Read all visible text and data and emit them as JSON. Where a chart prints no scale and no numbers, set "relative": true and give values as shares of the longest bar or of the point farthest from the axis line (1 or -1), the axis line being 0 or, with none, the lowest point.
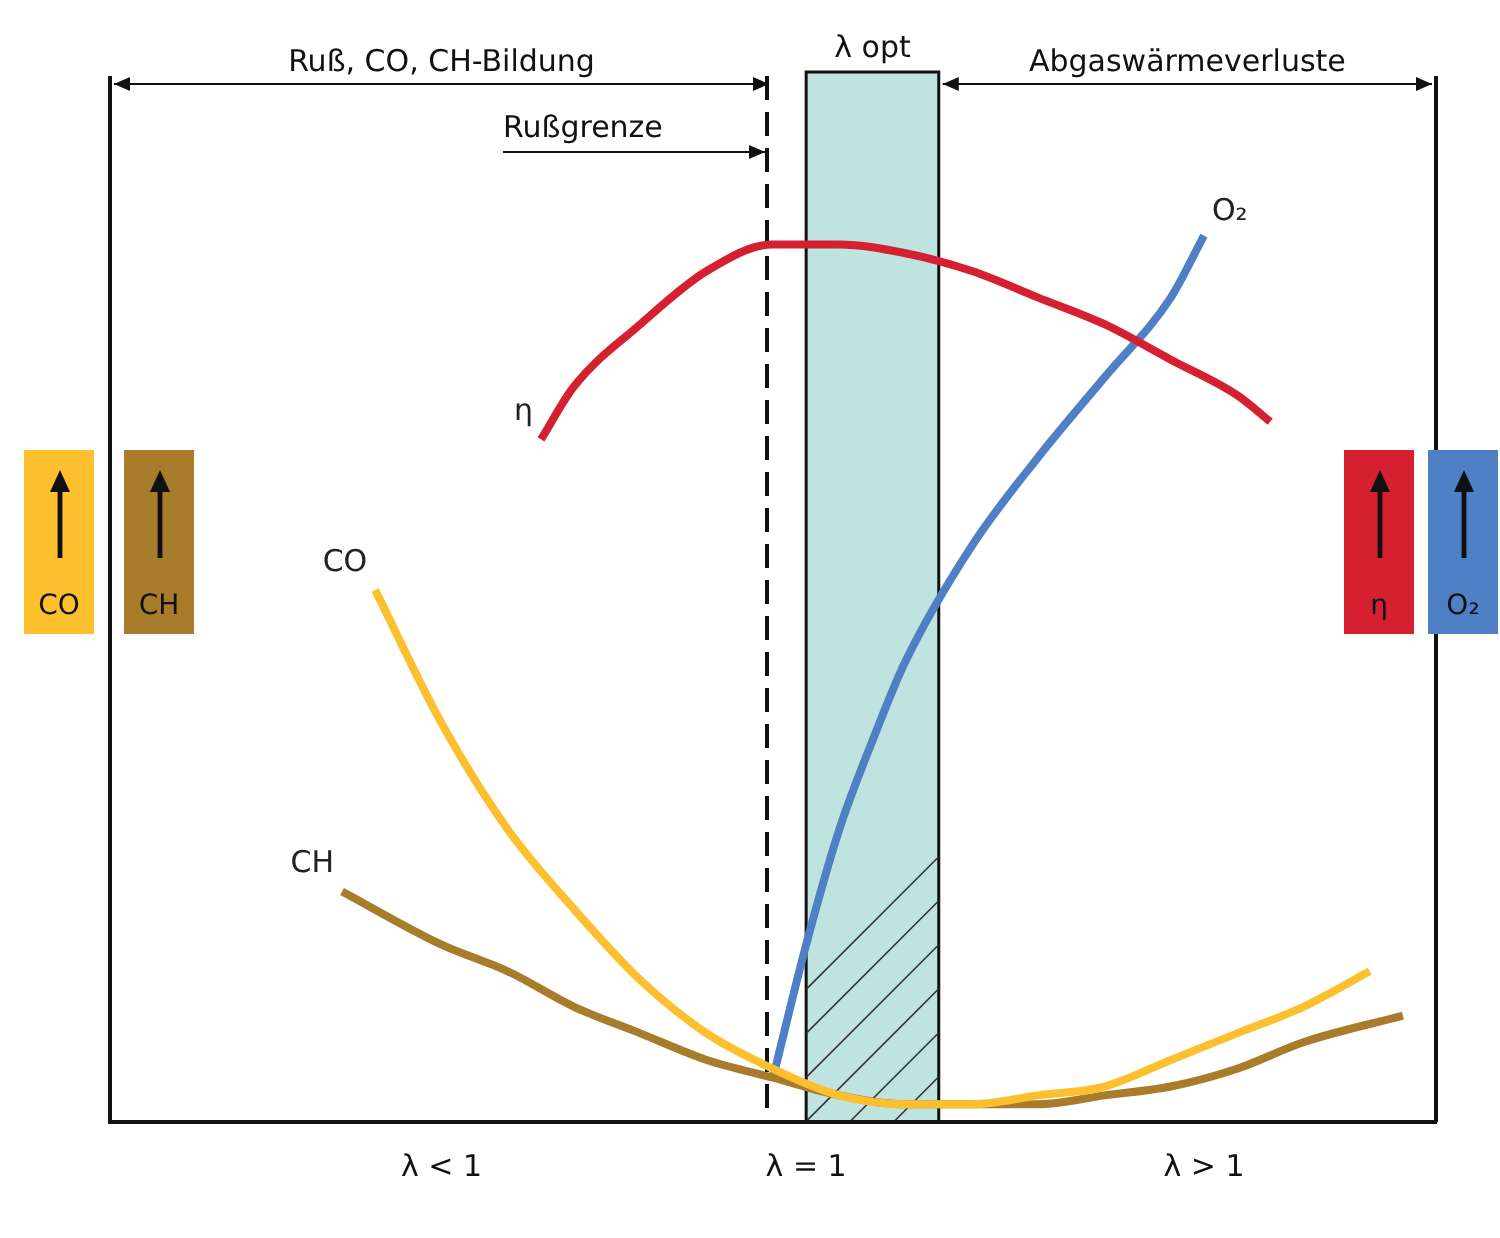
{
  "chart_data": {
    "type": "line",
    "relative": true,
    "marker": "none",
    "grid": false,
    "legend": false,
    "categories": [
      null,
      null,
      null,
      null,
      null,
      null,
      null,
      null,
      null,
      null,
      "λ < 1",
      null,
      null,
      null,
      null,
      null,
      null,
      null,
      null,
      null,
      null,
      "λ = 1",
      null,
      null,
      null,
      null,
      null,
      null,
      null,
      null,
      null,
      null,
      null,
      "λ > 1",
      null,
      null,
      null,
      null,
      null,
      null,
      null
    ],
    "series": [
      {
        "name": "η",
        "color": "#d42030",
        "values": [
          null,
          null,
          null,
          null,
          null,
          null,
          null,
          null,
          null,
          null,
          null,
          null,
          null,
          0.77,
          0.83,
          null,
          0.9,
          null,
          0.96,
          null,
          0.99,
          null,
          0.99,
          null,
          0.98,
          null,
          0.96,
          null,
          0.93,
          null,
          0.9,
          null,
          0.86,
          null,
          0.82,
          0.79,
          null,
          null,
          null,
          null,
          null
        ]
      },
      {
        "name": "CO",
        "color": "#fcc02e",
        "values": [
          null,
          null,
          null,
          null,
          null,
          null,
          null,
          null,
          0.6,
          null,
          0.45,
          null,
          0.33,
          null,
          0.24,
          null,
          0.16,
          null,
          0.1,
          null,
          0.06,
          null,
          0.03,
          null,
          0.02,
          null,
          0.02,
          null,
          0.03,
          null,
          0.04,
          null,
          0.07,
          null,
          0.1,
          null,
          0.13,
          null,
          0.17,
          null,
          null
        ]
      },
      {
        "name": "CH",
        "color": "#a87c2a",
        "values": [
          null,
          null,
          null,
          null,
          null,
          null,
          null,
          0.26,
          null,
          null,
          0.2,
          null,
          0.17,
          null,
          0.13,
          null,
          0.1,
          null,
          0.07,
          null,
          0.05,
          null,
          0.03,
          null,
          0.02,
          null,
          0.02,
          null,
          0.02,
          null,
          0.03,
          null,
          0.04,
          null,
          0.06,
          null,
          0.09,
          null,
          null,
          0.12,
          null
        ]
      },
      {
        "name": "O₂",
        "color": "#4f7fc4",
        "values": [
          null,
          null,
          null,
          null,
          null,
          null,
          null,
          null,
          null,
          null,
          null,
          null,
          null,
          null,
          null,
          null,
          null,
          null,
          null,
          null,
          0.05,
          0.2,
          0.33,
          0.43,
          0.52,
          null,
          0.65,
          null,
          0.75,
          null,
          0.84,
          null,
          0.93,
          1.0,
          null,
          null,
          null,
          null,
          null,
          null,
          null
        ]
      }
    ],
    "annotations": [
      "Ruß, CO, CH-Bildung",
      "Abgaswärmeverluste",
      "λ opt",
      "Rußgrenze"
    ]
  }
}
